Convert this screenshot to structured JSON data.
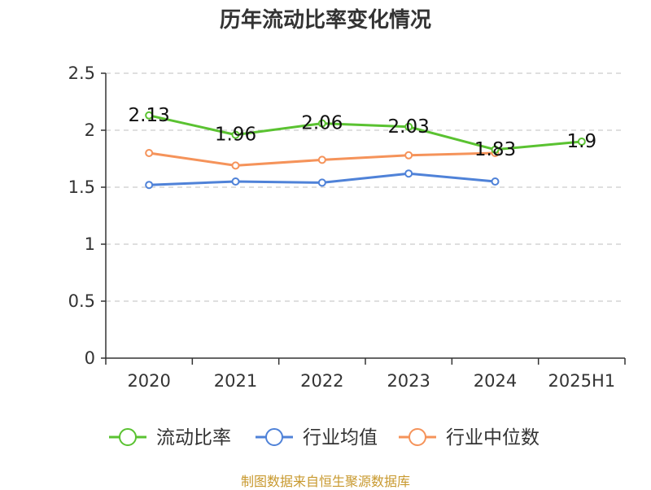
{
  "chart_data": {
    "type": "line",
    "title": "历年流动比率变化情况",
    "categories": [
      "2020",
      "2021",
      "2022",
      "2023",
      "2024",
      "2025H1"
    ],
    "ylim": [
      0,
      2.5
    ],
    "yticks": [
      "0",
      "0.5",
      "1",
      "1.5",
      "2",
      "2.5"
    ],
    "grid": true,
    "legend_position": "bottom",
    "series": [
      {
        "name": "流动比率",
        "color": "#5ac231",
        "values": [
          2.13,
          1.96,
          2.06,
          2.03,
          1.83,
          1.9
        ],
        "labels": [
          "2.13",
          "1.96",
          "2.06",
          "2.03",
          "1.83",
          "1.9"
        ]
      },
      {
        "name": "行业均值",
        "color": "#4f82d8",
        "values": [
          1.52,
          1.55,
          1.54,
          1.62,
          1.55,
          null
        ]
      },
      {
        "name": "行业中位数",
        "color": "#f5935a",
        "values": [
          1.8,
          1.69,
          1.74,
          1.78,
          1.8,
          null
        ]
      }
    ]
  },
  "source": "制图数据来自恒生聚源数据库"
}
